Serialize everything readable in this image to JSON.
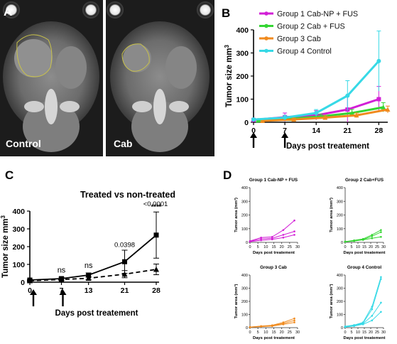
{
  "panels": {
    "A": {
      "letter": "A",
      "labels": [
        "Control",
        "Cab"
      ],
      "photo_colors": {
        "background": "#1c1c1c",
        "tissue": "#7a7a7a",
        "tumor_outline": "#c9c24a"
      }
    },
    "B": {
      "letter": "B",
      "xlabel": "Days post treatement",
      "ylabel": "Tumor size mm",
      "ylabel_sup": "3",
      "xlim": [
        0,
        30
      ],
      "ylim": [
        0,
        400
      ],
      "xticks": [
        0,
        7,
        14,
        21,
        28
      ],
      "yticks": [
        0,
        100,
        200,
        300,
        400
      ],
      "arrows_at_days": [
        0,
        7
      ],
      "legend_position": "top-right",
      "series": [
        {
          "name": "Group 1 Cab-NP + FUS",
          "color": "#d21fd6",
          "x": [
            0,
            7,
            14,
            21,
            28
          ],
          "y": [
            10,
            22,
            30,
            55,
            100
          ],
          "err": [
            5,
            18,
            20,
            60,
            55
          ]
        },
        {
          "name": "Group 2 Cab + FUS",
          "color": "#35d633",
          "x": [
            1,
            8,
            15,
            22,
            29
          ],
          "y": [
            8,
            15,
            25,
            40,
            65
          ],
          "err": [
            4,
            8,
            10,
            15,
            20
          ]
        },
        {
          "name": "Group 3 Cab",
          "color": "#f08a1d",
          "x": [
            2,
            9,
            16,
            23,
            30
          ],
          "y": [
            6,
            12,
            20,
            30,
            55
          ],
          "err": [
            3,
            6,
            8,
            10,
            15
          ]
        },
        {
          "name": "Group 4 Control",
          "color": "#37d9e6",
          "x": [
            0,
            7,
            14,
            21,
            28
          ],
          "y": [
            12,
            20,
            40,
            115,
            265
          ],
          "err": [
            4,
            10,
            15,
            65,
            130
          ]
        }
      ]
    },
    "C": {
      "letter": "C",
      "title": "Treated vs non-treated",
      "xlabel": "Days post treatement",
      "ylabel": "Tumor size mm",
      "ylabel_sup": "3",
      "xlim": [
        0,
        28
      ],
      "ylim": [
        0,
        400
      ],
      "xtick_labels": [
        "0",
        "7",
        "13",
        "21",
        "28"
      ],
      "xtick_positions": [
        0,
        7,
        13,
        21,
        28
      ],
      "yticks": [
        0,
        100,
        200,
        300,
        400
      ],
      "arrows_at_days": [
        0,
        7
      ],
      "annotations": [
        {
          "x": 7,
          "text": "ns"
        },
        {
          "x": 13,
          "text": "ns"
        },
        {
          "x": 21,
          "text": "0.0398"
        },
        {
          "x": 28,
          "text": "<0.0001"
        },
        {
          "x": 28,
          "text": "****"
        }
      ],
      "series": [
        {
          "name": "non-treated",
          "style": "solid",
          "marker": "square",
          "x": [
            0,
            7,
            13,
            21,
            28
          ],
          "y": [
            12,
            20,
            40,
            115,
            265
          ],
          "err": [
            4,
            8,
            12,
            65,
            130
          ]
        },
        {
          "name": "treated",
          "style": "dashed",
          "marker": "triangle",
          "x": [
            0,
            7,
            13,
            21,
            28
          ],
          "y": [
            8,
            15,
            22,
            45,
            72
          ],
          "err": [
            3,
            6,
            8,
            20,
            30
          ]
        }
      ]
    },
    "D": {
      "letter": "D",
      "subplots": [
        {
          "title": "Group 1 Cab-NP + FUS",
          "color": "#d21fd6",
          "lines": [
            [
              [
                0,
                10
              ],
              [
                7,
                35
              ],
              [
                14,
                40
              ],
              [
                21,
                90
              ],
              [
                28,
                160
              ]
            ],
            [
              [
                0,
                8
              ],
              [
                7,
                25
              ],
              [
                14,
                30
              ],
              [
                21,
                55
              ],
              [
                28,
                80
              ]
            ],
            [
              [
                0,
                5
              ],
              [
                7,
                15
              ],
              [
                14,
                22
              ],
              [
                21,
                35
              ],
              [
                28,
                55
              ]
            ]
          ]
        },
        {
          "title": "Group 2 Cab+FUS",
          "color": "#35d633",
          "lines": [
            [
              [
                0,
                5
              ],
              [
                7,
                15
              ],
              [
                14,
                25
              ],
              [
                21,
                55
              ],
              [
                28,
                90
              ]
            ],
            [
              [
                0,
                6
              ],
              [
                7,
                12
              ],
              [
                14,
                20
              ],
              [
                21,
                45
              ],
              [
                28,
                75
              ]
            ],
            [
              [
                0,
                4
              ],
              [
                7,
                10
              ],
              [
                14,
                18
              ],
              [
                21,
                30
              ],
              [
                28,
                40
              ]
            ]
          ]
        },
        {
          "title": "Group 3 Cab",
          "color": "#f08a1d",
          "lines": [
            [
              [
                0,
                4
              ],
              [
                7,
                12
              ],
              [
                14,
                18
              ],
              [
                21,
                40
              ],
              [
                28,
                70
              ]
            ],
            [
              [
                0,
                5
              ],
              [
                7,
                10
              ],
              [
                14,
                15
              ],
              [
                21,
                32
              ],
              [
                28,
                55
              ]
            ],
            [
              [
                0,
                3
              ],
              [
                7,
                8
              ],
              [
                14,
                12
              ],
              [
                21,
                25
              ],
              [
                28,
                40
              ]
            ]
          ]
        },
        {
          "title": "Group 4  Control",
          "color": "#37d9e6",
          "lines": [
            [
              [
                0,
                10
              ],
              [
                7,
                20
              ],
              [
                14,
                40
              ],
              [
                21,
                160
              ],
              [
                28,
                385
              ]
            ],
            [
              [
                0,
                8
              ],
              [
                7,
                18
              ],
              [
                14,
                35
              ],
              [
                21,
                140
              ],
              [
                28,
                370
              ]
            ],
            [
              [
                0,
                6
              ],
              [
                7,
                15
              ],
              [
                14,
                30
              ],
              [
                21,
                90
              ],
              [
                28,
                190
              ]
            ],
            [
              [
                0,
                5
              ],
              [
                7,
                12
              ],
              [
                14,
                25
              ],
              [
                21,
                55
              ],
              [
                28,
                120
              ]
            ]
          ]
        }
      ],
      "xlabel": "Days post treatement",
      "ylabel": "Tumor area (mm³)",
      "xticks": [
        0,
        5,
        10,
        15,
        20,
        25,
        30
      ],
      "yticks": [
        0,
        100,
        200,
        300,
        400
      ],
      "xlim": [
        0,
        30
      ],
      "ylim": [
        0,
        400
      ]
    }
  }
}
